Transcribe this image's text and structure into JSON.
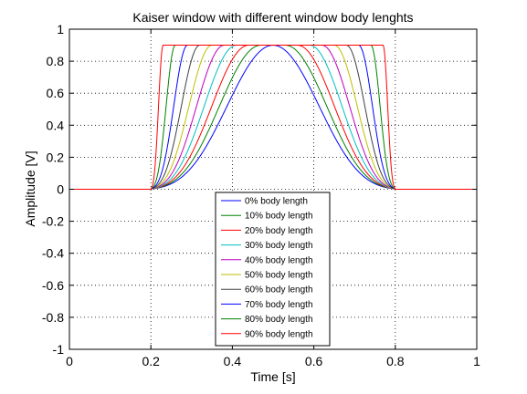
{
  "chart_data": {
    "type": "line",
    "title": "Kaiser window with different window body lenghts",
    "xlabel": "Time [s]",
    "ylabel": "Amplitude [V]",
    "xlim": [
      0,
      1
    ],
    "ylim": [
      -1,
      1
    ],
    "xticks": [
      0,
      0.2,
      0.4,
      0.6,
      0.8,
      1
    ],
    "xtick_labels": [
      "0",
      "0.2",
      "0.4",
      "0.6",
      "0.8",
      "1"
    ],
    "yticks": [
      -1,
      -0.8,
      -0.6,
      -0.4,
      -0.2,
      0,
      0.2,
      0.4,
      0.6,
      0.8,
      1
    ],
    "ytick_labels": [
      "-1",
      "-0.8",
      "-0.6",
      "-0.4",
      "-0.2",
      "0",
      "0.2",
      "0.4",
      "0.6",
      "0.8",
      "1"
    ],
    "grid": true,
    "legend_position": "bottom-center",
    "window_start": 0.2,
    "window_end": 0.8,
    "peak_amplitude": 0.9,
    "series": [
      {
        "name": "0% body length",
        "body_fraction": 0.0,
        "color": "#0000ff"
      },
      {
        "name": "10% body length",
        "body_fraction": 0.1,
        "color": "#008000"
      },
      {
        "name": "20% body length",
        "body_fraction": 0.2,
        "color": "#ff0000"
      },
      {
        "name": "30% body length",
        "body_fraction": 0.3,
        "color": "#00bfbf"
      },
      {
        "name": "40% body length",
        "body_fraction": 0.4,
        "color": "#bf00bf"
      },
      {
        "name": "50% body length",
        "body_fraction": 0.5,
        "color": "#bfbf00"
      },
      {
        "name": "60% body length",
        "body_fraction": 0.6,
        "color": "#404040"
      },
      {
        "name": "70% body length",
        "body_fraction": 0.7,
        "color": "#0000ff"
      },
      {
        "name": "80% body length",
        "body_fraction": 0.8,
        "color": "#008000"
      },
      {
        "name": "90% body length",
        "body_fraction": 0.9,
        "color": "#ff0000"
      }
    ]
  }
}
